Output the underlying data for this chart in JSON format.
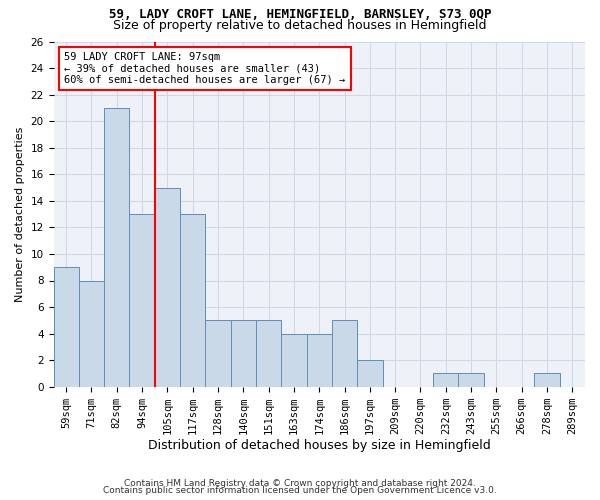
{
  "title1": "59, LADY CROFT LANE, HEMINGFIELD, BARNSLEY, S73 0QP",
  "title2": "Size of property relative to detached houses in Hemingfield",
  "xlabel": "Distribution of detached houses by size in Hemingfield",
  "ylabel": "Number of detached properties",
  "bar_labels": [
    "59sqm",
    "71sqm",
    "82sqm",
    "94sqm",
    "105sqm",
    "117sqm",
    "128sqm",
    "140sqm",
    "151sqm",
    "163sqm",
    "174sqm",
    "186sqm",
    "197sqm",
    "209sqm",
    "220sqm",
    "232sqm",
    "243sqm",
    "255sqm",
    "266sqm",
    "278sqm",
    "289sqm"
  ],
  "bar_values": [
    9,
    8,
    21,
    13,
    15,
    13,
    5,
    5,
    5,
    4,
    4,
    5,
    2,
    0,
    0,
    1,
    1,
    0,
    0,
    1,
    0
  ],
  "bar_color": "#c9d9e8",
  "bar_edge_color": "#5a8fbf",
  "vline_x_idx": 3.5,
  "annotation_line1": "59 LADY CROFT LANE: 97sqm",
  "annotation_line2": "← 39% of detached houses are smaller (43)",
  "annotation_line3": "60% of semi-detached houses are larger (67) →",
  "annotation_box_color": "white",
  "annotation_box_edge_color": "red",
  "vline_color": "red",
  "ylim": [
    0,
    26
  ],
  "yticks": [
    0,
    2,
    4,
    6,
    8,
    10,
    12,
    14,
    16,
    18,
    20,
    22,
    24,
    26
  ],
  "footnote1": "Contains HM Land Registry data © Crown copyright and database right 2024.",
  "footnote2": "Contains public sector information licensed under the Open Government Licence v3.0.",
  "grid_color": "#d0d8e8",
  "bg_color": "#eef2f8",
  "title1_fontsize": 9,
  "title2_fontsize": 9,
  "ylabel_fontsize": 8,
  "xlabel_fontsize": 9,
  "tick_fontsize": 7.5,
  "footnote_fontsize": 6.5
}
